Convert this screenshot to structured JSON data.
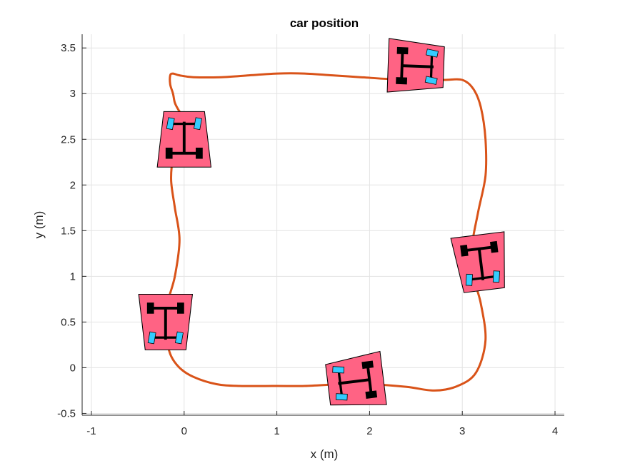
{
  "chart_data": {
    "type": "line",
    "title": "car position",
    "xlabel": "x (m)",
    "ylabel": "y (m)",
    "xlim": [
      -1.1,
      4.1
    ],
    "ylim": [
      -0.52,
      3.65
    ],
    "xticks": [
      -1,
      0,
      1,
      2,
      3,
      4
    ],
    "yticks": [
      -0.5,
      0,
      0.5,
      1,
      1.5,
      2,
      2.5,
      3,
      3.5
    ],
    "xtick_labels": [
      "-1",
      "0",
      "1",
      "2",
      "3",
      "4"
    ],
    "ytick_labels": [
      "-0.5",
      "0",
      "0.5",
      "1",
      "1.5",
      "2",
      "2.5",
      "3",
      "3.5"
    ],
    "grid": true,
    "series": [
      {
        "color": "#D95319",
        "x": [
          0.0,
          -0.05,
          -0.12,
          -0.14,
          -0.1,
          -0.05,
          -0.1,
          -0.18,
          -0.2,
          -0.15,
          -0.05,
          0.1,
          0.35,
          0.6,
          1.0,
          1.3,
          1.7,
          2.0,
          2.4,
          2.7,
          2.95,
          3.15,
          3.25,
          3.2,
          3.12,
          3.1,
          3.17,
          3.25,
          3.25,
          3.2,
          3.12,
          3.0,
          2.8,
          2.5,
          2.2,
          1.9,
          1.6,
          1.3,
          1.0,
          0.7,
          0.4,
          0.1,
          -0.05,
          -0.12,
          -0.15,
          -0.15,
          -0.12,
          -0.1,
          -0.06,
          -0.02,
          0.0
        ],
        "y": [
          2.7,
          2.55,
          2.3,
          2.05,
          1.75,
          1.4,
          1.0,
          0.7,
          0.4,
          0.15,
          0.0,
          -0.1,
          -0.18,
          -0.2,
          -0.2,
          -0.2,
          -0.18,
          -0.18,
          -0.21,
          -0.25,
          -0.2,
          -0.05,
          0.3,
          0.7,
          1.0,
          1.3,
          1.7,
          2.1,
          2.5,
          2.85,
          3.05,
          3.15,
          3.15,
          3.15,
          3.16,
          3.18,
          3.2,
          3.22,
          3.22,
          3.2,
          3.18,
          3.18,
          3.2,
          3.22,
          3.2,
          3.1,
          3.0,
          2.9,
          2.82,
          2.76,
          2.7
        ]
      }
    ],
    "cars": [
      {
        "x": 0.0,
        "y": 2.5,
        "angle": 0,
        "body_color": "#FF6384",
        "front_wheel_color": "#33CCFF",
        "rear_wheel_color": "#000000"
      },
      {
        "x": 2.5,
        "y": 3.3,
        "angle": -92,
        "body_color": "#FF6384",
        "front_wheel_color": "#33CCFF",
        "rear_wheel_color": "#000000"
      },
      {
        "x": 3.2,
        "y": 1.15,
        "angle": 187,
        "body_color": "#FF6384",
        "front_wheel_color": "#33CCFF",
        "rear_wheel_color": "#000000"
      },
      {
        "x": 1.85,
        "y": -0.15,
        "angle": 97,
        "body_color": "#FF6384",
        "front_wheel_color": "#33CCFF",
        "rear_wheel_color": "#000000"
      },
      {
        "x": -0.2,
        "y": 0.5,
        "angle": 180,
        "body_color": "#FF6384",
        "front_wheel_color": "#33CCFF",
        "rear_wheel_color": "#000000"
      }
    ]
  }
}
